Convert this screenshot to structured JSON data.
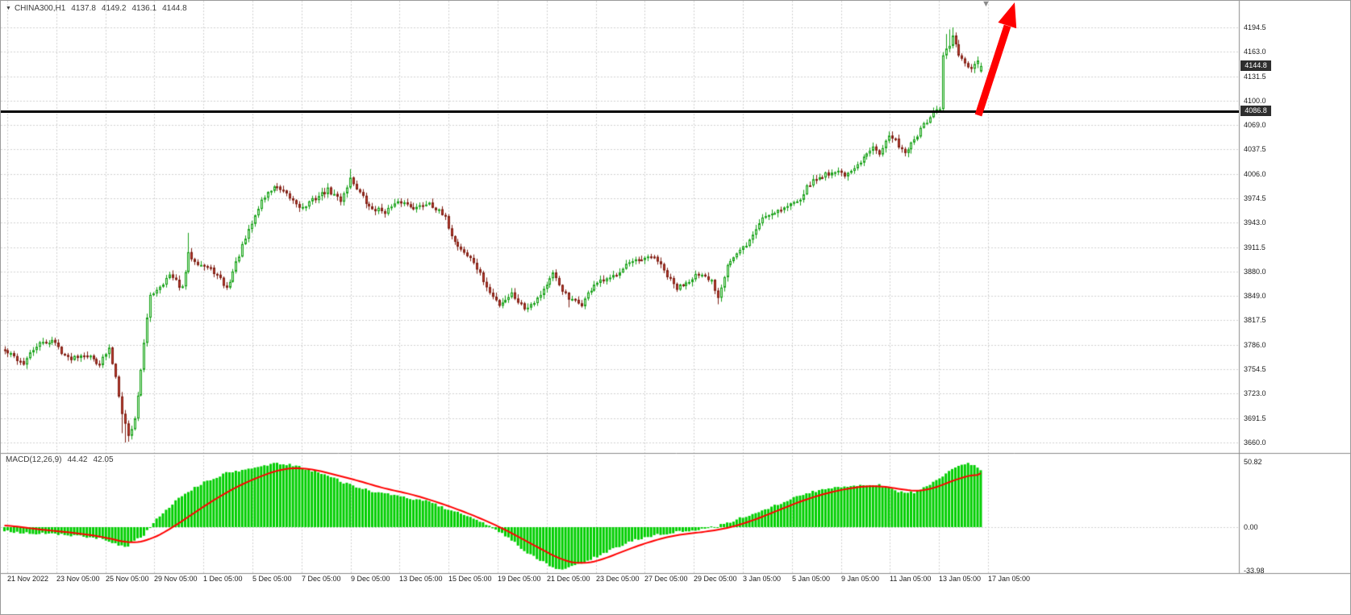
{
  "window": {
    "marker_icon": "▼",
    "symbol": "CHINA300,H1",
    "ohlc": {
      "open": "4137.8",
      "high": "4149.2",
      "low": "4136.1",
      "close": "4144.8"
    }
  },
  "price_axis": {
    "ticks": [
      "4194.5",
      "4163.0",
      "4131.5",
      "4100.0",
      "4069.0",
      "4037.5",
      "4006.0",
      "3974.5",
      "3943.0",
      "3911.5",
      "3880.0",
      "3849.0",
      "3817.5",
      "3786.0",
      "3754.5",
      "3723.0",
      "3691.5",
      "3660.0"
    ],
    "current_badge": "4144.8",
    "level_badge": "4086.8"
  },
  "time_axis": {
    "labels": [
      "21 Nov 2022",
      "23 Nov 05:00",
      "25 Nov 05:00",
      "29 Nov 05:00",
      "1 Dec 05:00",
      "5 Dec 05:00",
      "7 Dec 05:00",
      "9 Dec 05:00",
      "13 Dec 05:00",
      "15 Dec 05:00",
      "19 Dec 05:00",
      "21 Dec 05:00",
      "23 Dec 05:00",
      "27 Dec 05:00",
      "29 Dec 05:00",
      "3 Jan 05:00",
      "5 Jan 05:00",
      "9 Jan 05:00",
      "11 Jan 05:00",
      "13 Jan 05:00",
      "17 Jan 05:00"
    ]
  },
  "macd_panel": {
    "label": "MACD(12,26,9)",
    "macd_value": "44.42",
    "signal_value": "42.05",
    "scale": [
      "50.82",
      "0.00",
      "-33.98"
    ]
  },
  "annotations": {
    "chart_marker_icon": "▼",
    "trend_arrow": {
      "shape": "thick red arrow pointing up-right",
      "from_price": 4086.8,
      "to_top_of_chart": true
    }
  },
  "colors": {
    "bull_fill": "#C9F0C9",
    "bull_border": "#16A016",
    "bear_fill": "#BE3A2E",
    "bear_border": "#7E1F14",
    "histogram": "#00CE00",
    "signal_line": "#FF0000",
    "grid": "#D2D2D2",
    "separator": "#8C8C8C",
    "level_line": "#000000",
    "badge_bg": "#2E2E2E",
    "badge_text": "#FFFFFF",
    "arrow": "#FF0000",
    "axis_text": "#1C1C1C"
  },
  "chart_data": [
    {
      "type": "candlestick",
      "title": "CHINA300,H1",
      "x_labels": [
        "21 Nov 2022",
        "23 Nov 05:00",
        "25 Nov 05:00",
        "29 Nov 05:00",
        "1 Dec 05:00",
        "5 Dec 05:00",
        "7 Dec 05:00",
        "9 Dec 05:00",
        "13 Dec 05:00",
        "15 Dec 05:00",
        "19 Dec 05:00",
        "21 Dec 05:00",
        "23 Dec 05:00",
        "27 Dec 05:00",
        "29 Dec 05:00",
        "3 Jan 05:00",
        "5 Jan 05:00",
        "9 Jan 05:00",
        "11 Jan 05:00",
        "13 Jan 05:00",
        "17 Jan 05:00"
      ],
      "y_ticks": [
        4194.5,
        4163.0,
        4131.5,
        4100.0,
        4069.0,
        4037.5,
        4006.0,
        3974.5,
        3943.0,
        3911.5,
        3880.0,
        3849.0,
        3817.5,
        3786.0,
        3754.5,
        3723.0,
        3691.5,
        3660.0
      ],
      "y_range": [
        3648,
        4229
      ],
      "candle_count": 309,
      "level_line": 4086.8,
      "last": {
        "open": 4137.8,
        "high": 4149.2,
        "low": 4136.1,
        "close": 4144.8
      },
      "close_keyframes": [
        [
          0,
          3778
        ],
        [
          6,
          3762
        ],
        [
          10,
          3785
        ],
        [
          15,
          3792
        ],
        [
          20,
          3768
        ],
        [
          25,
          3775
        ],
        [
          30,
          3762
        ],
        [
          33,
          3780
        ],
        [
          35,
          3745
        ],
        [
          37,
          3700
        ],
        [
          39,
          3668
        ],
        [
          41,
          3690
        ],
        [
          43,
          3755
        ],
        [
          46,
          3850
        ],
        [
          49,
          3862
        ],
        [
          52,
          3875
        ],
        [
          56,
          3858
        ],
        [
          58,
          3902
        ],
        [
          61,
          3892
        ],
        [
          66,
          3880
        ],
        [
          70,
          3858
        ],
        [
          74,
          3902
        ],
        [
          78,
          3942
        ],
        [
          81,
          3972
        ],
        [
          85,
          3990
        ],
        [
          89,
          3978
        ],
        [
          94,
          3962
        ],
        [
          98,
          3975
        ],
        [
          102,
          3985
        ],
        [
          106,
          3972
        ],
        [
          109,
          4000
        ],
        [
          111,
          3988
        ],
        [
          115,
          3962
        ],
        [
          120,
          3958
        ],
        [
          125,
          3970
        ],
        [
          130,
          3962
        ],
        [
          134,
          3970
        ],
        [
          139,
          3948
        ],
        [
          142,
          3918
        ],
        [
          148,
          3892
        ],
        [
          153,
          3852
        ],
        [
          156,
          3838
        ],
        [
          160,
          3852
        ],
        [
          164,
          3833
        ],
        [
          168,
          3846
        ],
        [
          173,
          3876
        ],
        [
          178,
          3844
        ],
        [
          182,
          3838
        ],
        [
          186,
          3864
        ],
        [
          191,
          3870
        ],
        [
          196,
          3890
        ],
        [
          201,
          3894
        ],
        [
          205,
          3900
        ],
        [
          209,
          3874
        ],
        [
          212,
          3858
        ],
        [
          218,
          3876
        ],
        [
          223,
          3868
        ],
        [
          225,
          3848
        ],
        [
          228,
          3890
        ],
        [
          232,
          3906
        ],
        [
          235,
          3920
        ],
        [
          239,
          3950
        ],
        [
          243,
          3958
        ],
        [
          247,
          3964
        ],
        [
          251,
          3976
        ],
        [
          254,
          3994
        ],
        [
          258,
          4004
        ],
        [
          262,
          4010
        ],
        [
          266,
          4004
        ],
        [
          270,
          4020
        ],
        [
          274,
          4044
        ],
        [
          276,
          4034
        ],
        [
          279,
          4054
        ],
        [
          281,
          4048
        ],
        [
          284,
          4034
        ],
        [
          286,
          4044
        ],
        [
          290,
          4068
        ],
        [
          293,
          4084
        ],
        [
          295,
          4088
        ],
        [
          296,
          4158
        ],
        [
          298,
          4172
        ],
        [
          299,
          4184
        ],
        [
          301,
          4158
        ],
        [
          303,
          4148
        ],
        [
          305,
          4138
        ],
        [
          307,
          4150
        ],
        [
          308,
          4144.8
        ]
      ],
      "high_wick_overrides": [
        [
          58,
          3930
        ],
        [
          109,
          4012
        ],
        [
          297,
          4186
        ],
        [
          298,
          4192
        ],
        [
          299,
          4194.5
        ],
        [
          300,
          4188
        ]
      ],
      "low_wick_overrides": [
        [
          37,
          3672
        ],
        [
          38,
          3660
        ],
        [
          39,
          3661
        ],
        [
          40,
          3668
        ],
        [
          178,
          3834
        ],
        [
          225,
          3838
        ]
      ]
    },
    {
      "type": "macd",
      "params": [
        12,
        26,
        9
      ],
      "current_macd": 44.42,
      "current_signal": 42.05,
      "y_ticks": [
        50.82,
        0.0,
        -33.98
      ],
      "histogram_keyframes": [
        [
          0,
          -3
        ],
        [
          10,
          -5
        ],
        [
          20,
          -6
        ],
        [
          30,
          -9
        ],
        [
          38,
          -16
        ],
        [
          44,
          -6
        ],
        [
          48,
          6
        ],
        [
          52,
          16
        ],
        [
          58,
          28
        ],
        [
          64,
          36
        ],
        [
          70,
          42
        ],
        [
          78,
          46
        ],
        [
          86,
          50
        ],
        [
          92,
          48
        ],
        [
          100,
          42
        ],
        [
          108,
          34
        ],
        [
          116,
          28
        ],
        [
          124,
          24
        ],
        [
          132,
          21
        ],
        [
          140,
          14
        ],
        [
          148,
          6
        ],
        [
          154,
          0
        ],
        [
          160,
          -10
        ],
        [
          166,
          -22
        ],
        [
          172,
          -30
        ],
        [
          176,
          -33.9
        ],
        [
          182,
          -28
        ],
        [
          188,
          -22
        ],
        [
          194,
          -15
        ],
        [
          200,
          -9
        ],
        [
          208,
          -5
        ],
        [
          216,
          -3
        ],
        [
          224,
          0
        ],
        [
          230,
          5
        ],
        [
          238,
          12
        ],
        [
          246,
          20
        ],
        [
          254,
          27
        ],
        [
          262,
          31
        ],
        [
          270,
          33
        ],
        [
          276,
          33
        ],
        [
          282,
          28
        ],
        [
          287,
          27
        ],
        [
          292,
          33
        ],
        [
          296,
          40
        ],
        [
          300,
          46
        ],
        [
          304,
          50.8
        ],
        [
          308,
          44.42
        ]
      ],
      "signal_keyframes": [
        [
          0,
          2
        ],
        [
          8,
          -1
        ],
        [
          16,
          -3
        ],
        [
          24,
          -5
        ],
        [
          32,
          -8
        ],
        [
          40,
          -13
        ],
        [
          46,
          -10
        ],
        [
          52,
          -2
        ],
        [
          58,
          8
        ],
        [
          64,
          18
        ],
        [
          72,
          30
        ],
        [
          80,
          39
        ],
        [
          88,
          46
        ],
        [
          96,
          46
        ],
        [
          104,
          41
        ],
        [
          112,
          36
        ],
        [
          120,
          30
        ],
        [
          128,
          26
        ],
        [
          136,
          20
        ],
        [
          144,
          13
        ],
        [
          152,
          5
        ],
        [
          158,
          -2
        ],
        [
          164,
          -10
        ],
        [
          170,
          -18
        ],
        [
          176,
          -26
        ],
        [
          182,
          -29
        ],
        [
          188,
          -26
        ],
        [
          196,
          -18
        ],
        [
          204,
          -11
        ],
        [
          212,
          -6
        ],
        [
          220,
          -4
        ],
        [
          228,
          -1
        ],
        [
          236,
          5
        ],
        [
          244,
          13
        ],
        [
          252,
          21
        ],
        [
          260,
          27
        ],
        [
          268,
          31
        ],
        [
          274,
          32.5
        ],
        [
          280,
          31
        ],
        [
          286,
          28
        ],
        [
          291,
          28.5
        ],
        [
          296,
          33
        ],
        [
          302,
          39
        ],
        [
          308,
          42.05
        ]
      ]
    }
  ]
}
